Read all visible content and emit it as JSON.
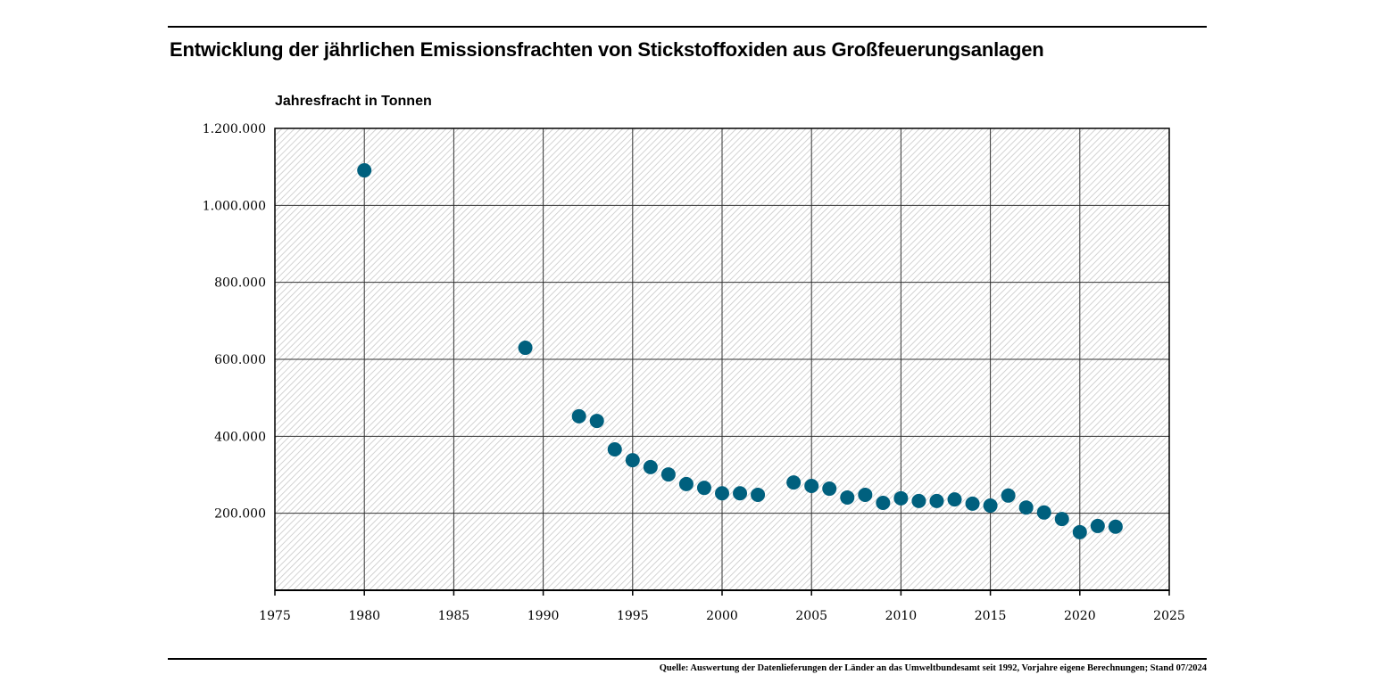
{
  "chart_data": {
    "type": "scatter",
    "title": "Entwicklung der jährlichen Emissionsfrachten von Stickstoffoxiden aus Großfeuerungsanlagen",
    "xlabel": "",
    "ylabel": "Jahresfracht in Tonnen",
    "xlim": [
      1975,
      2025
    ],
    "ylim": [
      0,
      1200000
    ],
    "x_ticks": [
      "1975",
      "1980",
      "1985",
      "1990",
      "1995",
      "2000",
      "2005",
      "2010",
      "2015",
      "2020",
      "2025"
    ],
    "x_tick_values": [
      1975,
      1980,
      1985,
      1990,
      1995,
      2000,
      2005,
      2010,
      2015,
      2020,
      2025
    ],
    "y_ticks": [
      "200.000",
      "400.000",
      "600.000",
      "800.000",
      "1.000.000",
      "1.200.000"
    ],
    "y_tick_values": [
      200000,
      400000,
      600000,
      800000,
      1000000,
      1200000
    ],
    "grid": true,
    "marker_color": "#00607e",
    "x": [
      1980,
      1989,
      1992,
      1993,
      1994,
      1995,
      1996,
      1997,
      1998,
      1999,
      2000,
      2001,
      2002,
      2004,
      2005,
      2006,
      2007,
      2008,
      2009,
      2010,
      2011,
      2012,
      2013,
      2014,
      2015,
      2016,
      2017,
      2018,
      2019,
      2020,
      2021,
      2022
    ],
    "y": [
      1091000,
      630000,
      452000,
      440000,
      366000,
      338000,
      320000,
      301000,
      276000,
      266000,
      252000,
      252000,
      248000,
      280000,
      271000,
      264000,
      241000,
      248000,
      227000,
      239000,
      232000,
      232000,
      236000,
      225000,
      220000,
      246000,
      215000,
      202000,
      185000,
      151000,
      167000,
      165000
    ]
  },
  "source": "Quelle: Auswertung der Datenlieferungen der Länder an das Umweltbundesamt seit 1992, Vorjahre eigene Berechnungen; Stand 07/2024"
}
